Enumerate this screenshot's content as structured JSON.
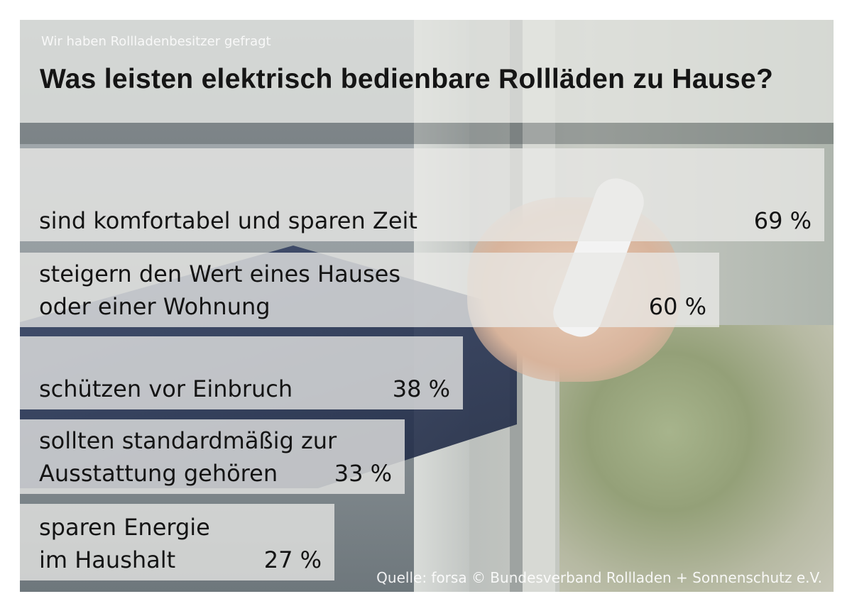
{
  "subtitle": "Wir haben Rollladenbesitzer gefragt",
  "title": "Was leisten elektrisch bedienbare Rollläden zu Hause?",
  "source": "Quelle: forsa © Bundesverband Rollladen + Sonnenschutz e.V.",
  "colors": {
    "bar_fill": "#e8e8e6",
    "text": "#141414",
    "source_text": "#ffffff"
  },
  "chart_data": {
    "type": "bar",
    "orientation": "horizontal",
    "title": "Was leisten elektrisch bedienbare Rollläden zu Hause?",
    "subtitle": "Wir haben Rollladenbesitzer gefragt",
    "categories": [
      "sind komfortabel und sparen Zeit",
      "steigern den Wert eines Hauses\noder einer Wohnung",
      "schützen vor Einbruch",
      "sollten standardmäßig zur\nAusstattung gehören",
      "sparen Energie\nim Haushalt"
    ],
    "values": [
      69,
      60,
      38,
      33,
      27
    ],
    "value_labels": [
      "69 %",
      "60 %",
      "38 %",
      "33 %",
      "27 %"
    ],
    "xlim": [
      0,
      69
    ],
    "grid": false,
    "legend": "none"
  }
}
